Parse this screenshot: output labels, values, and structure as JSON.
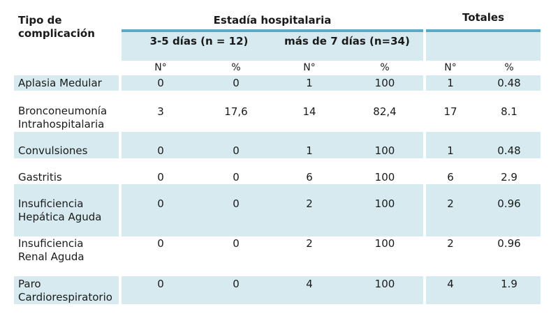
{
  "table": {
    "corner_header": [
      "Tipo de",
      "complicación"
    ],
    "group_headers": {
      "estadia": "Estadía hospitalaria",
      "totales": "Totales"
    },
    "subgroups": {
      "short_stay": "3-5 días (n = 12)",
      "long_stay": "más de 7 días (n=34)"
    },
    "column_headers": [
      "N°",
      "%",
      "N°",
      "%",
      "N°",
      "%"
    ],
    "rows": [
      {
        "label": [
          "Aplasia Medular"
        ],
        "values": [
          "0",
          "0",
          "1",
          "100",
          "1",
          "0.48"
        ]
      },
      {
        "label": [
          "Bronconeumonía",
          "Intrahospitalaria"
        ],
        "values": [
          "3",
          "17,6",
          "14",
          "82,4",
          "17",
          "8.1"
        ]
      },
      {
        "label": [
          "Convulsiones"
        ],
        "values": [
          "0",
          "0",
          "1",
          "100",
          "1",
          "0.48"
        ]
      },
      {
        "label": [
          "Gastritis"
        ],
        "values": [
          "0",
          "0",
          "6",
          "100",
          "6",
          "2.9"
        ]
      },
      {
        "label": [
          "Insuficiencia",
          "Hepática Aguda"
        ],
        "values": [
          "0",
          "0",
          "2",
          "100",
          "2",
          "0.96"
        ]
      },
      {
        "label": [
          "Insuficiencia",
          "Renal Aguda"
        ],
        "values": [
          "0",
          "0",
          "2",
          "100",
          "2",
          "0.96"
        ]
      },
      {
        "label": [
          "Paro",
          "Cardiorespiratorio"
        ],
        "values": [
          "0",
          "0",
          "4",
          "100",
          "4",
          "1.9"
        ]
      }
    ]
  },
  "colors": {
    "shade": "#d6eaf0",
    "accent_bar": "#5aa9c8"
  }
}
